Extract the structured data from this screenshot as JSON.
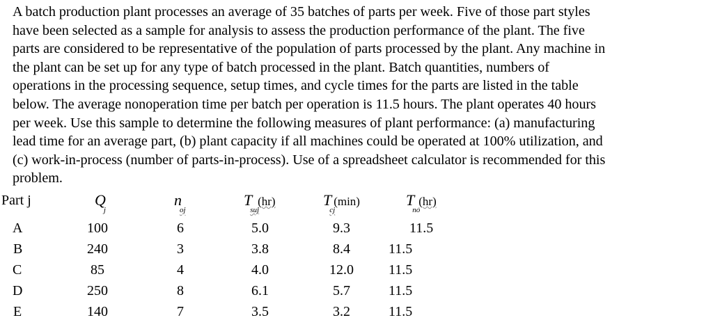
{
  "problem": {
    "lines": [
      "A batch production plant processes an average of 35 batches of parts per week. Five of those part styles",
      "have been selected as a sample for analysis to assess the production performance of the plant. The five",
      "parts are considered to be representative of the population of parts processed by the plant. Any machine in",
      "the plant can be set up for any type of batch processed in the plant. Batch quantities, numbers of",
      "operations in the processing sequence, setup times, and cycle times for the parts are listed in the table",
      "below. The average nonoperation time per batch per operation is 11.5 hours. The plant operates 40 hours",
      "per week. Use this sample to determine the following measures of plant performance: (a) manufacturing",
      "lead time for an average part, (b) plant capacity if all machines could be operated at 100% utilization, and",
      "(c) work-in-process (number of parts-in-process). Use of a spreadsheet calculator is recommended for this",
      "problem."
    ]
  },
  "table": {
    "headers": {
      "part": "Part j",
      "q_symbol": "Q",
      "q_sub": "j",
      "n_symbol": "n",
      "n_sub": "oj",
      "tsu_symbol": "T",
      "tsu_sub": "suj",
      "tsu_unit": "(hr)",
      "tc_symbol": "T",
      "tc_sub": "cj",
      "tc_unit": "(min)",
      "tno_symbol": "T",
      "tno_sub": "no",
      "tno_unit": "(hr)"
    },
    "rows": [
      {
        "part": "A",
        "q": "100",
        "n": "6",
        "tsu": "5.0",
        "tc": "9.3",
        "tno": "11.5"
      },
      {
        "part": "B",
        "q": "240",
        "n": "3",
        "tsu": "3.8",
        "tc": "8.4",
        "tno": "11.5"
      },
      {
        "part": "C",
        "q": "85",
        "n": "4",
        "tsu": "4.0",
        "tc": "12.0",
        "tno": "11.5"
      },
      {
        "part": "D",
        "q": "250",
        "n": "8",
        "tsu": "6.1",
        "tc": "5.7",
        "tno": "11.5"
      },
      {
        "part": "E",
        "q": "140",
        "n": "7",
        "tsu": "3.5",
        "tc": "3.2",
        "tno": "11.5"
      }
    ]
  }
}
